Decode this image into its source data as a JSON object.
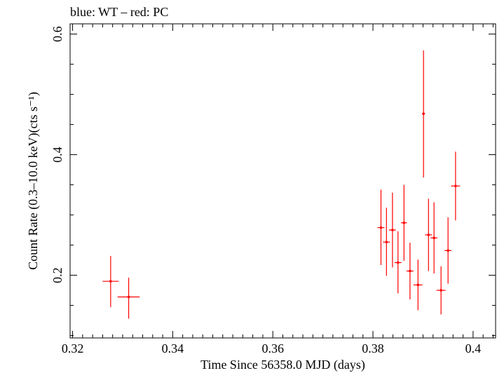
{
  "chart_data": {
    "type": "scatter",
    "title": "blue: WT – red: PC",
    "xlabel": "Time Since 56358.0 MJD (days)",
    "ylabel": "Count Rate (0.3–10.0 keV)(cts s⁻¹)",
    "xlim": [
      0.3195,
      0.4045
    ],
    "ylim": [
      0.096,
      0.617
    ],
    "x_ticks": [
      0.32,
      0.34,
      0.36,
      0.38,
      0.4
    ],
    "x_tick_labels": [
      "0.32",
      "0.34",
      "0.36",
      "0.38",
      "0.4"
    ],
    "y_ticks": [
      0.2,
      0.4,
      0.6
    ],
    "y_tick_labels": [
      "0.2",
      "0.4",
      "0.6"
    ],
    "grid": false,
    "series": [
      {
        "name": "PC",
        "color": "#ff0000",
        "points": [
          {
            "x": 0.3276,
            "xerr": 0.0016,
            "y": 0.19,
            "yerr_lo": 0.043,
            "yerr_hi": 0.042
          },
          {
            "x": 0.3312,
            "xerr": 0.0022,
            "y": 0.164,
            "yerr_lo": 0.036,
            "yerr_hi": 0.032
          },
          {
            "x": 0.3816,
            "xerr": 0.0007,
            "y": 0.279,
            "yerr_lo": 0.062,
            "yerr_hi": 0.063
          },
          {
            "x": 0.3827,
            "xerr": 0.0007,
            "y": 0.255,
            "yerr_lo": 0.056,
            "yerr_hi": 0.057
          },
          {
            "x": 0.3839,
            "xerr": 0.0007,
            "y": 0.275,
            "yerr_lo": 0.062,
            "yerr_hi": 0.062
          },
          {
            "x": 0.385,
            "xerr": 0.0007,
            "y": 0.221,
            "yerr_lo": 0.051,
            "yerr_hi": 0.052
          },
          {
            "x": 0.3862,
            "xerr": 0.0006,
            "y": 0.287,
            "yerr_lo": 0.063,
            "yerr_hi": 0.063
          },
          {
            "x": 0.3874,
            "xerr": 0.0007,
            "y": 0.207,
            "yerr_lo": 0.047,
            "yerr_hi": 0.047
          },
          {
            "x": 0.389,
            "xerr": 0.0009,
            "y": 0.184,
            "yerr_lo": 0.042,
            "yerr_hi": 0.042
          },
          {
            "x": 0.3901,
            "xerr": 0.0003,
            "y": 0.468,
            "yerr_lo": 0.106,
            "yerr_hi": 0.105
          },
          {
            "x": 0.3911,
            "xerr": 0.0007,
            "y": 0.267,
            "yerr_lo": 0.06,
            "yerr_hi": 0.06
          },
          {
            "x": 0.3922,
            "xerr": 0.0007,
            "y": 0.262,
            "yerr_lo": 0.059,
            "yerr_hi": 0.059
          },
          {
            "x": 0.3936,
            "xerr": 0.0009,
            "y": 0.175,
            "yerr_lo": 0.04,
            "yerr_hi": 0.04
          },
          {
            "x": 0.395,
            "xerr": 0.0007,
            "y": 0.241,
            "yerr_lo": 0.055,
            "yerr_hi": 0.055
          },
          {
            "x": 0.3965,
            "xerr": 0.0009,
            "y": 0.348,
            "yerr_lo": 0.057,
            "yerr_hi": 0.057
          }
        ]
      }
    ]
  }
}
